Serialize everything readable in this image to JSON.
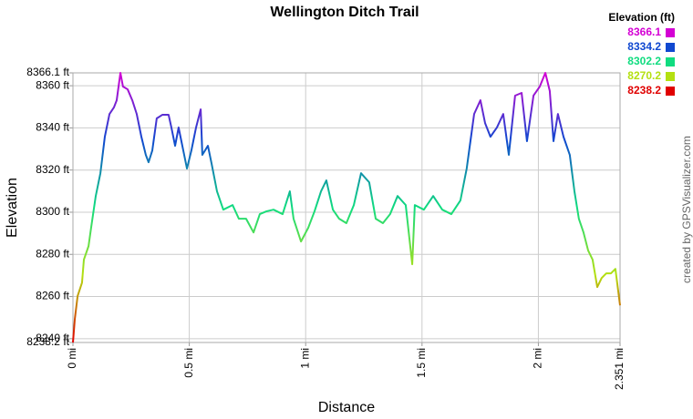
{
  "chart_data": {
    "type": "line",
    "title": "Wellington Ditch Trail",
    "x_label": "Distance",
    "y_label": "Elevation",
    "credit": "created by GPSVisualizer.com",
    "legend_title": "Elevation (ft)",
    "color_scale": [
      {
        "value": 8366.1,
        "color": "#d400d4"
      },
      {
        "value": 8334.2,
        "color": "#1048d0"
      },
      {
        "value": 8302.2,
        "color": "#10dc80"
      },
      {
        "value": 8270.2,
        "color": "#b4e010"
      },
      {
        "value": 8238.2,
        "color": "#e00000"
      }
    ],
    "grid": true,
    "xlim": [
      0,
      2.351
    ],
    "ylim": [
      8238.2,
      8366.1
    ],
    "xticks": [
      {
        "value": 0,
        "label": "0 mi"
      },
      {
        "value": 0.5,
        "label": "0.5 mi"
      },
      {
        "value": 1,
        "label": "1 mi"
      },
      {
        "value": 1.5,
        "label": "1.5 mi"
      },
      {
        "value": 2,
        "label": "2 mi"
      },
      {
        "value": 2.351,
        "label": "2.351 mi"
      }
    ],
    "yticks": [
      {
        "value": 8238.2,
        "label": "8238.2 ft"
      },
      {
        "value": 8240,
        "label": "8240 ft"
      },
      {
        "value": 8260,
        "label": "8260 ft"
      },
      {
        "value": 8280,
        "label": "8280 ft"
      },
      {
        "value": 8300,
        "label": "8300 ft"
      },
      {
        "value": 8320,
        "label": "8320 ft"
      },
      {
        "value": 8340,
        "label": "8340 ft"
      },
      {
        "value": 8360,
        "label": "8360 ft"
      },
      {
        "value": 8366.1,
        "label": "8366.1 ft"
      }
    ],
    "x": [
      0,
      0.008,
      0.02,
      0.039,
      0.047,
      0.067,
      0.078,
      0.098,
      0.118,
      0.137,
      0.157,
      0.176,
      0.188,
      0.204,
      0.215,
      0.235,
      0.255,
      0.274,
      0.294,
      0.313,
      0.325,
      0.341,
      0.36,
      0.384,
      0.411,
      0.423,
      0.439,
      0.454,
      0.47,
      0.49,
      0.509,
      0.529,
      0.549,
      0.556,
      0.58,
      0.596,
      0.619,
      0.646,
      0.686,
      0.713,
      0.744,
      0.776,
      0.803,
      0.831,
      0.862,
      0.901,
      0.932,
      0.948,
      0.98,
      1.011,
      1.038,
      1.066,
      1.089,
      1.117,
      1.144,
      1.175,
      1.207,
      1.238,
      1.273,
      1.301,
      1.332,
      1.363,
      1.395,
      1.43,
      1.458,
      1.469,
      1.508,
      1.548,
      1.587,
      1.626,
      1.665,
      1.692,
      1.724,
      1.751,
      1.771,
      1.794,
      1.822,
      1.849,
      1.873,
      1.9,
      1.928,
      1.951,
      1.979,
      2.006,
      2.03,
      2.049,
      2.065,
      2.084,
      2.108,
      2.135,
      2.155,
      2.174,
      2.194,
      2.214,
      2.233,
      2.253,
      2.272,
      2.292,
      2.312,
      2.331,
      2.351
    ],
    "values": [
      8238.2,
      8249.3,
      8260.2,
      8266.6,
      8277.5,
      8283.9,
      8292.6,
      8307.7,
      8318.5,
      8335.8,
      8346.6,
      8349.7,
      8353.1,
      8366.1,
      8359.6,
      8358.3,
      8353.1,
      8346.6,
      8335.8,
      8327.2,
      8323.7,
      8329.3,
      8344.5,
      8346.2,
      8346.2,
      8340.2,
      8331.5,
      8340.2,
      8331.5,
      8320.7,
      8329.3,
      8340.2,
      8348.8,
      8327.2,
      8331.5,
      8322.9,
      8309.9,
      8301.2,
      8303.4,
      8296.9,
      8296.9,
      8290.4,
      8299.1,
      8300.4,
      8301.2,
      8299.1,
      8309.9,
      8296.9,
      8286.1,
      8292.6,
      8300.4,
      8309.9,
      8315.1,
      8301.2,
      8296.9,
      8294.8,
      8303.4,
      8318.5,
      8314.2,
      8296.9,
      8294.8,
      8299.1,
      8307.7,
      8303.4,
      8275.3,
      8303.4,
      8301.2,
      8307.7,
      8301.2,
      8299.1,
      8305.6,
      8320.7,
      8346.6,
      8353.1,
      8342.3,
      8335.8,
      8340.2,
      8346.6,
      8327.2,
      8355.3,
      8356.6,
      8333.7,
      8355.3,
      8359.6,
      8366.1,
      8357.5,
      8333.7,
      8346.6,
      8335.8,
      8327.2,
      8309.9,
      8296.9,
      8290.4,
      8281.8,
      8277.5,
      8264.5,
      8268.8,
      8271.0,
      8271.0,
      8273.1,
      8255.8
    ]
  }
}
